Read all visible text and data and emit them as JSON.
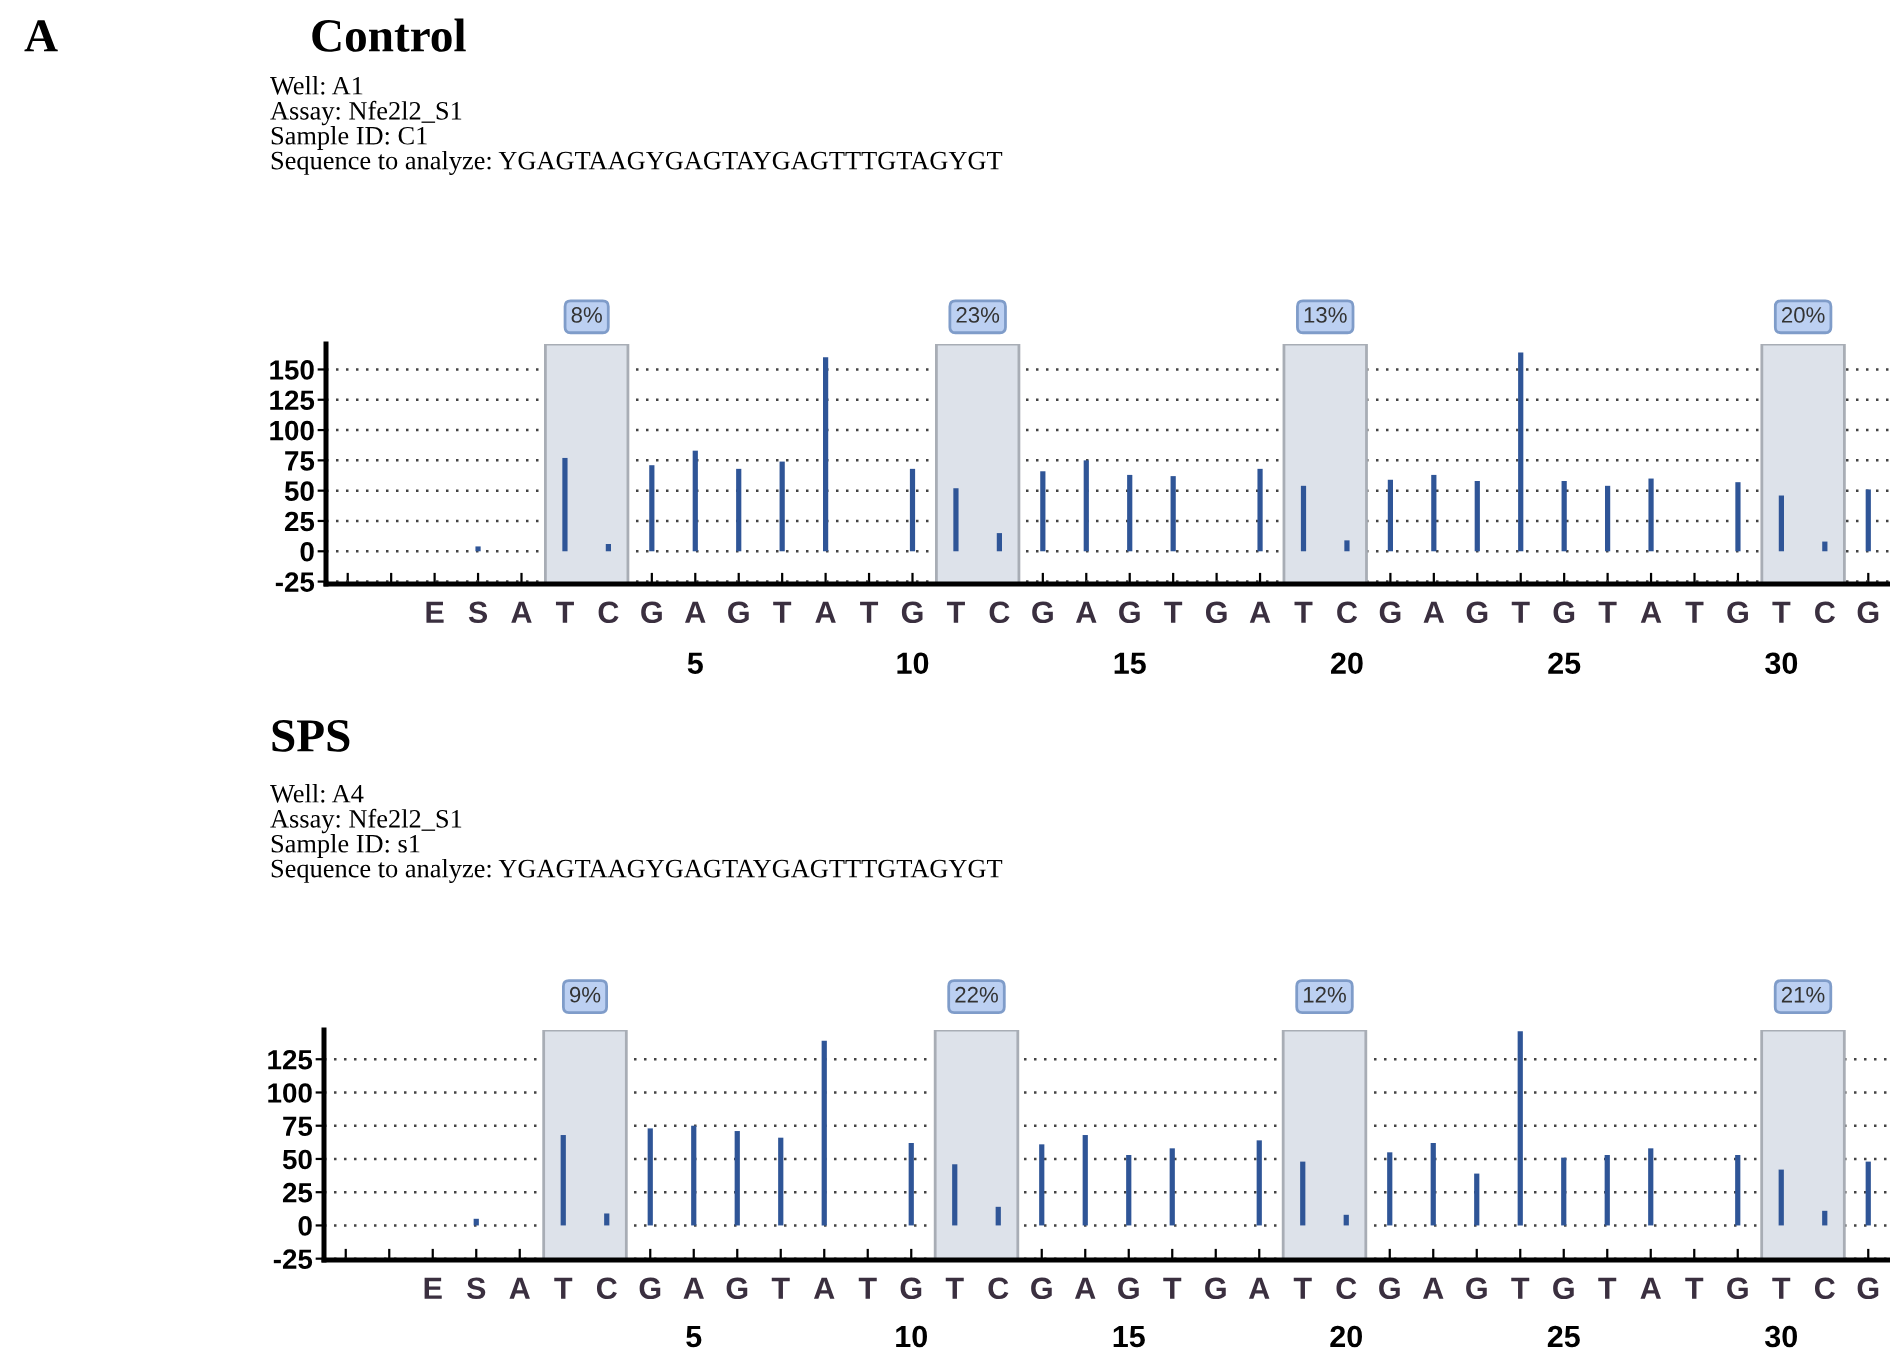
{
  "chart_data": [
    {
      "type": "bar",
      "title": "Control",
      "subtitle": "Well: A1\nAssay: Nfe2l2_S1\nSample ID: C1\nSequence to analyze: YGAGTAAGYGAGTAYGAGTTTGTAGYGT",
      "annotations": [
        "A"
      ],
      "categories": [
        null,
        null,
        "E",
        "S",
        "A",
        "T",
        "C",
        "G",
        "A",
        "G",
        "T",
        "A",
        "T",
        "G",
        "T",
        "C",
        "G",
        "A",
        "G",
        "T",
        "G",
        "A",
        "T",
        "C",
        "G",
        "A",
        "G",
        "T",
        "G",
        "T",
        "A",
        "T",
        "G",
        "T",
        "C",
        "G"
      ],
      "series": [
        {
          "color": "#2f5597",
          "values": [
            null,
            null,
            0,
            4,
            0,
            77,
            6,
            71,
            83,
            68,
            74,
            160,
            0,
            68,
            52,
            15,
            66,
            75,
            63,
            62,
            0,
            68,
            54,
            9,
            59,
            63,
            58,
            164,
            58,
            54,
            60,
            0,
            57,
            46,
            8,
            51
          ]
        }
      ],
      "ylim": [
        -27,
        171
      ],
      "yticks": [
        -25,
        0,
        25,
        50,
        75,
        100,
        125,
        150
      ],
      "grid": "y",
      "x2lim": [
        -3.5,
        32.5
      ],
      "x2ticks": [
        5,
        10,
        15,
        20,
        25,
        30
      ],
      "bands": [
        {
          "axis": "x2",
          "from": 1.55,
          "to": 3.45,
          "label": "8%",
          "color": "#dde2ea"
        },
        {
          "axis": "x2",
          "from": 10.55,
          "to": 12.45,
          "label": "23%",
          "color": "#dde2ea"
        },
        {
          "axis": "x2",
          "from": 18.55,
          "to": 20.45,
          "label": "13%",
          "color": "#dde2ea"
        },
        {
          "axis": "x2",
          "from": 29.55,
          "to": 31.45,
          "label": "20%",
          "color": "#dde2ea"
        }
      ]
    },
    {
      "type": "bar",
      "title": "SPS",
      "subtitle": "Well: A4\nAssay: Nfe2l2_S1\nSample ID: s1\nSequence to analyze: YGAGTAAGYGAGTAYGAGTTTGTAGYGT",
      "categories": [
        null,
        null,
        "E",
        "S",
        "A",
        "T",
        "C",
        "G",
        "A",
        "G",
        "T",
        "A",
        "T",
        "G",
        "T",
        "C",
        "G",
        "A",
        "G",
        "T",
        "G",
        "A",
        "T",
        "C",
        "G",
        "A",
        "G",
        "T",
        "G",
        "T",
        "A",
        "T",
        "G",
        "T",
        "C",
        "G"
      ],
      "series": [
        {
          "color": "#2f5597",
          "values": [
            null,
            null,
            0,
            5,
            0,
            68,
            9,
            73,
            75,
            71,
            66,
            139,
            0,
            62,
            46,
            14,
            61,
            68,
            53,
            58,
            0,
            64,
            48,
            8,
            55,
            62,
            39,
            146,
            51,
            53,
            58,
            0,
            53,
            42,
            11,
            48
          ]
        }
      ],
      "ylim": [
        -26,
        147
      ],
      "yticks": [
        -25,
        0,
        25,
        50,
        75,
        100,
        125
      ],
      "grid": "y",
      "x2lim": [
        -3.5,
        32.5
      ],
      "x2ticks": [
        5,
        10,
        15,
        20,
        25,
        30
      ],
      "bands": [
        {
          "axis": "x2",
          "from": 1.55,
          "to": 3.45,
          "label": "9%",
          "color": "#dde2ea"
        },
        {
          "axis": "x2",
          "from": 10.55,
          "to": 12.45,
          "label": "22%",
          "color": "#dde2ea"
        },
        {
          "axis": "x2",
          "from": 18.55,
          "to": 20.45,
          "label": "12%",
          "color": "#dde2ea"
        },
        {
          "axis": "x2",
          "from": 29.55,
          "to": 31.45,
          "label": "21%",
          "color": "#dde2ea"
        }
      ]
    }
  ]
}
